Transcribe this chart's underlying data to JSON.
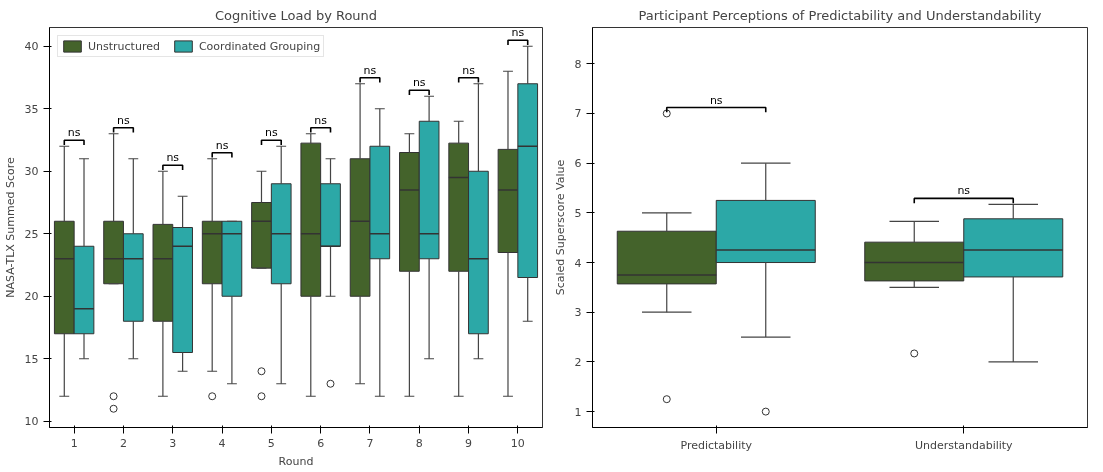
{
  "chart_data": [
    {
      "type": "box",
      "title": "Cognitive Load by Round",
      "xlabel": "Round",
      "ylabel": "NASA-TLX Summed Score",
      "categories": [
        "1",
        "2",
        "3",
        "4",
        "5",
        "6",
        "7",
        "8",
        "9",
        "10"
      ],
      "ylim": [
        9.5,
        41.5
      ],
      "yticks": [
        10,
        15,
        20,
        25,
        30,
        35,
        40
      ],
      "grid": false,
      "legend": "top left",
      "series": [
        {
          "name": "Unstructured",
          "color": "#44632b",
          "boxes": [
            {
              "low": 12,
              "q1": 17,
              "median": 23,
              "q3": 26,
              "high": 32
            },
            {
              "low": 21,
              "q1": 21,
              "median": 23,
              "q3": 26,
              "high": 33,
              "outliers": [
                12,
                11
              ]
            },
            {
              "low": 12,
              "q1": 18,
              "median": 23,
              "q3": 25.75,
              "high": 30
            },
            {
              "low": 14,
              "q1": 21,
              "median": 25,
              "q3": 26,
              "high": 31,
              "outliers": [
                12
              ]
            },
            {
              "low": 22.25,
              "q1": 22.25,
              "median": 26,
              "q3": 27.5,
              "high": 30,
              "outliers": [
                14,
                12
              ]
            },
            {
              "low": 12,
              "q1": 20,
              "median": 25,
              "q3": 32.25,
              "high": 33
            },
            {
              "low": 13,
              "q1": 20,
              "median": 26,
              "q3": 31,
              "high": 37
            },
            {
              "low": 12,
              "q1": 22,
              "median": 28.5,
              "q3": 31.5,
              "high": 33
            },
            {
              "low": 12,
              "q1": 22,
              "median": 29.5,
              "q3": 32.25,
              "high": 34
            },
            {
              "low": 12,
              "q1": 23.5,
              "median": 28.5,
              "q3": 31.75,
              "high": 38
            }
          ]
        },
        {
          "name": "Coordinated Grouping",
          "color": "#2ca8a7",
          "boxes": [
            {
              "low": 15,
              "q1": 17,
              "median": 19,
              "q3": 24,
              "high": 31
            },
            {
              "low": 15,
              "q1": 18,
              "median": 23,
              "q3": 25,
              "high": 31
            },
            {
              "low": 14,
              "q1": 15.5,
              "median": 24,
              "q3": 25.5,
              "high": 28
            },
            {
              "low": 13,
              "q1": 20,
              "median": 25,
              "q3": 26,
              "high": 26
            },
            {
              "low": 13,
              "q1": 21,
              "median": 25,
              "q3": 29,
              "high": 32
            },
            {
              "low": 20,
              "q1": 24,
              "median": 24,
              "q3": 29,
              "high": 31,
              "outliers": [
                13
              ]
            },
            {
              "low": 12,
              "q1": 23,
              "median": 25,
              "q3": 32,
              "high": 35
            },
            {
              "low": 15,
              "q1": 23,
              "median": 25,
              "q3": 34,
              "high": 36
            },
            {
              "low": 15,
              "q1": 17,
              "median": 23,
              "q3": 30,
              "high": 37
            },
            {
              "low": 18,
              "q1": 21.5,
              "median": 32,
              "q3": 37,
              "high": 40
            }
          ]
        }
      ],
      "annotations": [
        "ns",
        "ns",
        "ns",
        "ns",
        "ns",
        "ns",
        "ns",
        "ns",
        "ns",
        "ns"
      ]
    },
    {
      "type": "box",
      "title": "Participant Perceptions of Predictability and Understandability",
      "ylabel": "Scaled Superscore Value",
      "categories": [
        "Predictability",
        "Understandability"
      ],
      "ylim": [
        0.68,
        8.73
      ],
      "yticks": [
        1,
        2,
        3,
        4,
        5,
        6,
        7,
        8
      ],
      "grid": false,
      "series": [
        {
          "color": "#44632b",
          "boxes": [
            {
              "low": 3,
              "q1": 3.57,
              "median": 3.75,
              "q3": 4.63,
              "high": 5,
              "outliers": [
                7,
                1.25
              ]
            },
            {
              "low": 3.5,
              "q1": 3.63,
              "median": 4,
              "q3": 4.41,
              "high": 4.83,
              "outliers": [
                2.17
              ]
            }
          ]
        },
        {
          "color": "#2ca8a7",
          "boxes": [
            {
              "low": 2.5,
              "q1": 4,
              "median": 4.25,
              "q3": 5.25,
              "high": 6,
              "outliers": [
                1
              ]
            },
            {
              "low": 2,
              "q1": 3.71,
              "median": 4.25,
              "q3": 4.88,
              "high": 5.17
            }
          ]
        }
      ],
      "annotations": [
        "ns",
        "ns"
      ]
    }
  ]
}
